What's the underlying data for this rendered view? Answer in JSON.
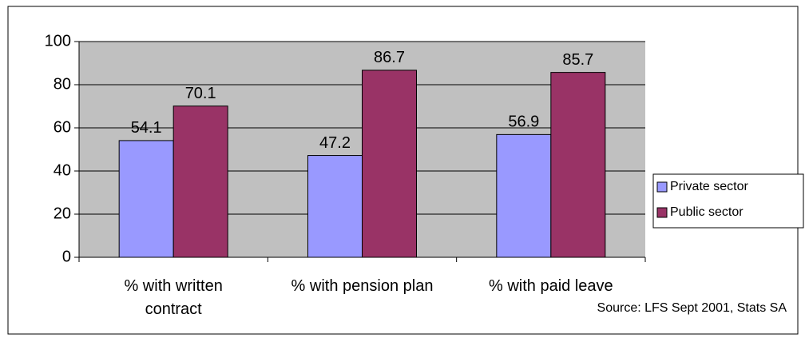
{
  "chart_data": {
    "type": "bar",
    "categories": [
      "% with written contract",
      "% with pension plan",
      "% with paid leave"
    ],
    "series": [
      {
        "name": "Private sector",
        "color": "#9999ff",
        "values": [
          54.1,
          47.2,
          56.9
        ]
      },
      {
        "name": "Public sector",
        "color": "#993366",
        "values": [
          70.1,
          86.7,
          85.7
        ]
      }
    ],
    "ylim": [
      0,
      100
    ],
    "yticks": [
      0,
      20,
      40,
      60,
      80,
      100
    ],
    "grid": true,
    "legend": "right",
    "annotation": "Source: LFS Sept 2001, Stats SA"
  }
}
